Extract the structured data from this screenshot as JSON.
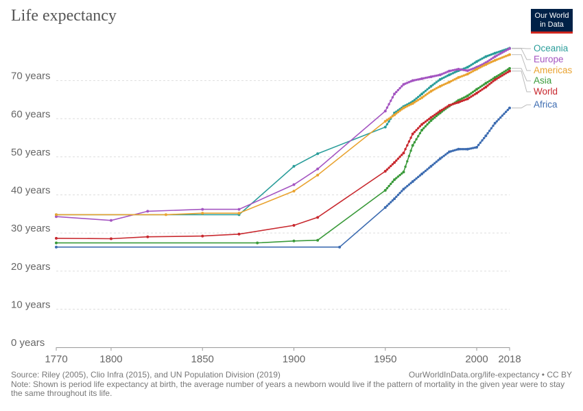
{
  "header": {
    "title": "Life expectancy"
  },
  "logo": {
    "line1": "Our World",
    "line2": "in Data",
    "bg_color": "#002147",
    "accent_color": "#ce261e"
  },
  "footer": {
    "source": "Source: Riley (2005), Clio Infra (2015), and UN Population Division (2019)",
    "url": "OurWorldInData.org/life-expectancy • CC BY",
    "note": "Note: Shown is period life expectancy at birth, the average number of years a newborn would live if the pattern of mortality in the given year were to stay the same throughout its life."
  },
  "chart_data": {
    "type": "line",
    "title": "Life expectancy",
    "xlim": [
      1770,
      2018
    ],
    "ylim": [
      0,
      80
    ],
    "x_ticks": [
      1770,
      1800,
      1850,
      1900,
      1950,
      2000,
      2018
    ],
    "y_ticks": [
      0,
      10,
      20,
      30,
      40,
      50,
      60,
      70
    ],
    "y_tick_labels": [
      "0 years",
      "10 years",
      "20 years",
      "30 years",
      "40 years",
      "50 years",
      "60 years",
      "70 years"
    ],
    "grid": true,
    "legend": "right",
    "series": [
      {
        "name": "Oceania",
        "color": "#2a9d9a",
        "points": [
          [
            1770,
            34.8
          ],
          [
            1870,
            34.8
          ],
          [
            1900,
            47.5
          ],
          [
            1913,
            50.8
          ],
          [
            1950,
            57.8
          ],
          [
            1955,
            61.5
          ],
          [
            1960,
            63.2
          ],
          [
            1965,
            64.5
          ],
          [
            1970,
            66.5
          ],
          [
            1975,
            68.5
          ],
          [
            1980,
            70.3
          ],
          [
            1985,
            71.5
          ],
          [
            1990,
            72.6
          ],
          [
            1995,
            73.5
          ],
          [
            2000,
            75.0
          ],
          [
            2005,
            76.3
          ],
          [
            2010,
            77.2
          ],
          [
            2018,
            78.5
          ]
        ]
      },
      {
        "name": "Europe",
        "color": "#a455c1",
        "points": [
          [
            1770,
            34.3
          ],
          [
            1800,
            33.3
          ],
          [
            1820,
            35.7
          ],
          [
            1850,
            36.2
          ],
          [
            1870,
            36.2
          ],
          [
            1900,
            42.7
          ],
          [
            1913,
            46.8
          ],
          [
            1950,
            62.0
          ],
          [
            1955,
            66.5
          ],
          [
            1960,
            69.0
          ],
          [
            1965,
            70.0
          ],
          [
            1970,
            70.5
          ],
          [
            1975,
            71.0
          ],
          [
            1980,
            71.5
          ],
          [
            1985,
            72.5
          ],
          [
            1990,
            73.0
          ],
          [
            1995,
            72.6
          ],
          [
            2000,
            73.5
          ],
          [
            2005,
            74.7
          ],
          [
            2010,
            76.3
          ],
          [
            2018,
            78.4
          ]
        ]
      },
      {
        "name": "Americas",
        "color": "#e9a330",
        "points": [
          [
            1770,
            34.8
          ],
          [
            1830,
            34.8
          ],
          [
            1850,
            35.2
          ],
          [
            1870,
            35.2
          ],
          [
            1900,
            41.0
          ],
          [
            1913,
            45.2
          ],
          [
            1950,
            59.3
          ],
          [
            1955,
            61.0
          ],
          [
            1960,
            62.8
          ],
          [
            1965,
            64.0
          ],
          [
            1970,
            65.5
          ],
          [
            1975,
            67.2
          ],
          [
            1980,
            68.5
          ],
          [
            1985,
            69.6
          ],
          [
            1990,
            70.8
          ],
          [
            1995,
            71.7
          ],
          [
            2000,
            73.0
          ],
          [
            2005,
            74.2
          ],
          [
            2010,
            75.3
          ],
          [
            2018,
            76.8
          ]
        ]
      },
      {
        "name": "Asia",
        "color": "#3a9a3a",
        "points": [
          [
            1770,
            27.4
          ],
          [
            1880,
            27.4
          ],
          [
            1900,
            27.9
          ],
          [
            1913,
            28.1
          ],
          [
            1950,
            41.2
          ],
          [
            1955,
            44.0
          ],
          [
            1960,
            46.0
          ],
          [
            1965,
            53.0
          ],
          [
            1970,
            57.0
          ],
          [
            1975,
            59.5
          ],
          [
            1980,
            61.5
          ],
          [
            1985,
            63.3
          ],
          [
            1990,
            64.8
          ],
          [
            1995,
            66.0
          ],
          [
            2000,
            67.7
          ],
          [
            2005,
            69.3
          ],
          [
            2010,
            70.8
          ],
          [
            2018,
            73.2
          ]
        ]
      },
      {
        "name": "World",
        "color": "#c8282e",
        "points": [
          [
            1770,
            28.6
          ],
          [
            1800,
            28.5
          ],
          [
            1820,
            29.0
          ],
          [
            1850,
            29.2
          ],
          [
            1870,
            29.7
          ],
          [
            1900,
            32.0
          ],
          [
            1913,
            34.1
          ],
          [
            1950,
            46.2
          ],
          [
            1955,
            48.5
          ],
          [
            1960,
            51.0
          ],
          [
            1965,
            56.0
          ],
          [
            1970,
            58.5
          ],
          [
            1975,
            60.3
          ],
          [
            1980,
            62.0
          ],
          [
            1985,
            63.5
          ],
          [
            1990,
            64.3
          ],
          [
            1995,
            65.2
          ],
          [
            2000,
            66.7
          ],
          [
            2005,
            68.3
          ],
          [
            2010,
            70.2
          ],
          [
            2018,
            72.5
          ]
        ]
      },
      {
        "name": "Africa",
        "color": "#3d6cb1",
        "points": [
          [
            1770,
            26.3
          ],
          [
            1925,
            26.3
          ],
          [
            1950,
            36.7
          ],
          [
            1955,
            39.0
          ],
          [
            1960,
            41.5
          ],
          [
            1965,
            43.5
          ],
          [
            1970,
            45.5
          ],
          [
            1975,
            47.5
          ],
          [
            1980,
            49.5
          ],
          [
            1985,
            51.3
          ],
          [
            1990,
            52.0
          ],
          [
            1995,
            52.0
          ],
          [
            2000,
            52.5
          ],
          [
            2005,
            55.5
          ],
          [
            2010,
            58.8
          ],
          [
            2018,
            62.8
          ]
        ]
      }
    ]
  }
}
